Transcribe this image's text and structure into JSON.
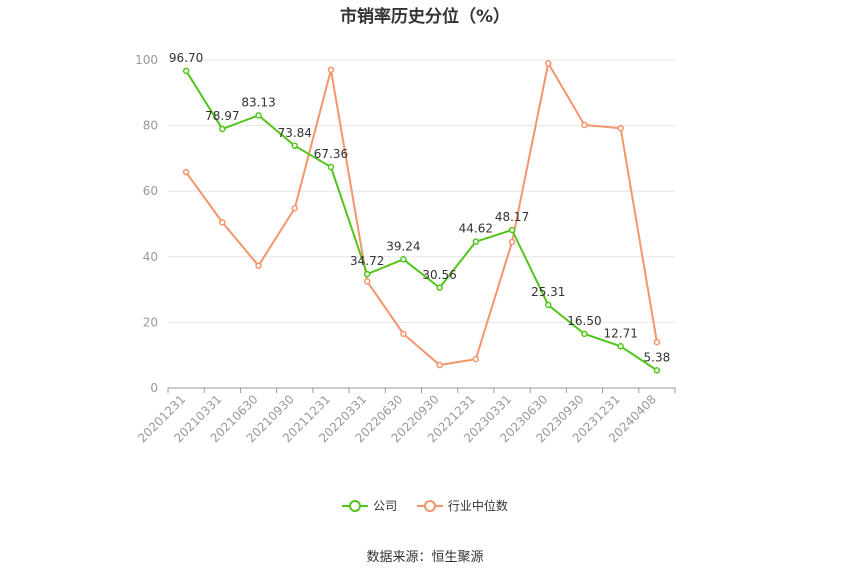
{
  "chart_data": {
    "type": "line",
    "title": "市销率历史分位（%）",
    "categories": [
      "20201231",
      "20210331",
      "20210630",
      "20210930",
      "20211231",
      "20220331",
      "20220630",
      "20220930",
      "20221231",
      "20230331",
      "20230630",
      "20230930",
      "20231231",
      "20240408"
    ],
    "ylim": [
      0,
      100
    ],
    "yticks": [
      0,
      20,
      40,
      60,
      80,
      100
    ],
    "grid": true,
    "legend_position": "bottom",
    "series": [
      {
        "name": "公司",
        "color": "#52c41a",
        "values": [
          96.7,
          78.97,
          83.13,
          73.84,
          67.36,
          34.72,
          39.24,
          30.56,
          44.62,
          48.17,
          25.31,
          16.5,
          12.71,
          5.38
        ],
        "labels": [
          "96.70",
          "78.97",
          "83.13",
          "73.84",
          "67.36",
          "34.72",
          "39.24",
          "30.56",
          "44.62",
          "48.17",
          "25.31",
          "16.50",
          "12.71",
          "5.38"
        ]
      },
      {
        "name": "行业中位数",
        "color": "#f4956b",
        "values": [
          65.8,
          50.5,
          37.3,
          54.8,
          97.0,
          32.5,
          16.5,
          7.0,
          8.8,
          44.5,
          99.0,
          80.2,
          79.2,
          14.0
        ]
      }
    ]
  },
  "source_text": "数据来源：恒生聚源"
}
